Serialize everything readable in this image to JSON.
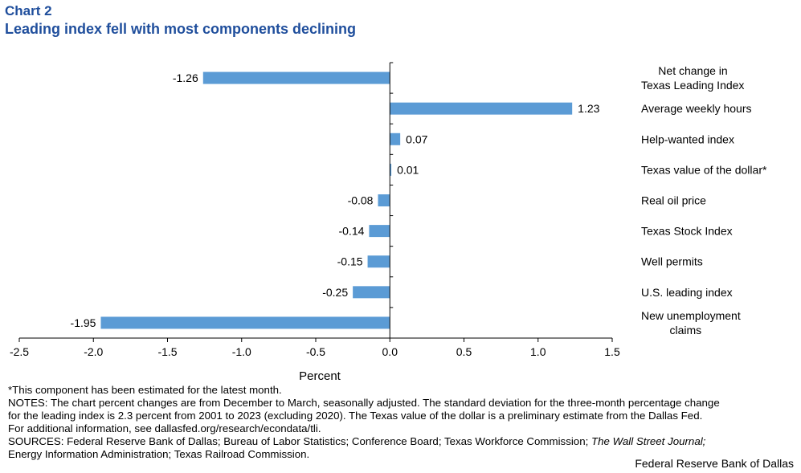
{
  "header": {
    "label": "Chart 2",
    "title": "Leading index fell with most components declining"
  },
  "chart_data": {
    "type": "bar",
    "orientation": "horizontal",
    "categories": [
      "Net change in Texas Leading Index",
      "Average weekly hours",
      "Help-wanted index",
      "Texas value of the dollar*",
      "Real oil price",
      "Texas Stock Index",
      "Well permits",
      "U.S. leading index",
      "New unemployment claims"
    ],
    "category_lines": [
      [
        "Net change in",
        "Texas Leading Index"
      ],
      [
        "Average weekly hours"
      ],
      [
        "Help-wanted index"
      ],
      [
        "Texas value of the dollar*"
      ],
      [
        "Real oil price"
      ],
      [
        "Texas Stock Index"
      ],
      [
        "Well permits"
      ],
      [
        "U.S. leading index"
      ],
      [
        "New unemployment",
        "claims"
      ]
    ],
    "values": [
      -1.26,
      1.23,
      0.07,
      0.01,
      -0.08,
      -0.14,
      -0.15,
      -0.25,
      -1.95
    ],
    "value_labels": [
      "-1.26",
      "1.23",
      "0.07",
      "0.01",
      "-0.08",
      "-0.14",
      "-0.15",
      "-0.25",
      "-1.95"
    ],
    "xlabel": "Percent",
    "xlim": [
      -2.5,
      1.5
    ],
    "xticks": [
      -2.5,
      -2.0,
      -1.5,
      -1.0,
      -0.5,
      0.0,
      0.5,
      1.0,
      1.5
    ],
    "xtick_labels": [
      "-2.5",
      "-2.0",
      "-1.5",
      "-1.0",
      "-0.5",
      "0.0",
      "0.5",
      "1.0",
      "1.5"
    ],
    "grid": false,
    "bar_color": "#5b9bd5"
  },
  "notes": {
    "estimate": "*This component has been estimated for the latest month.",
    "notes_line1": "NOTES: The chart percent changes are from December to March, seasonally adjusted. The standard deviation for the three-month percentage change",
    "notes_line2": "for the leading index is 2.3 percent from 2001 to 2023 (excluding 2020). The Texas value of the dollar is a preliminary estimate from the Dallas Fed.",
    "notes_line3": "For additional information, see dallasfed.org/research/econdata/tli.",
    "sources_pre": "SOURCES: Federal Reserve Bank of Dallas; Bureau of Labor Statistics; Conference Board; Texas Workforce Commission; ",
    "sources_italic": "The Wall Street Journal;",
    "sources_line2": "Energy Information Administration; Texas Railroad Commission."
  },
  "footer": {
    "credit": "Federal Reserve Bank of Dallas"
  }
}
